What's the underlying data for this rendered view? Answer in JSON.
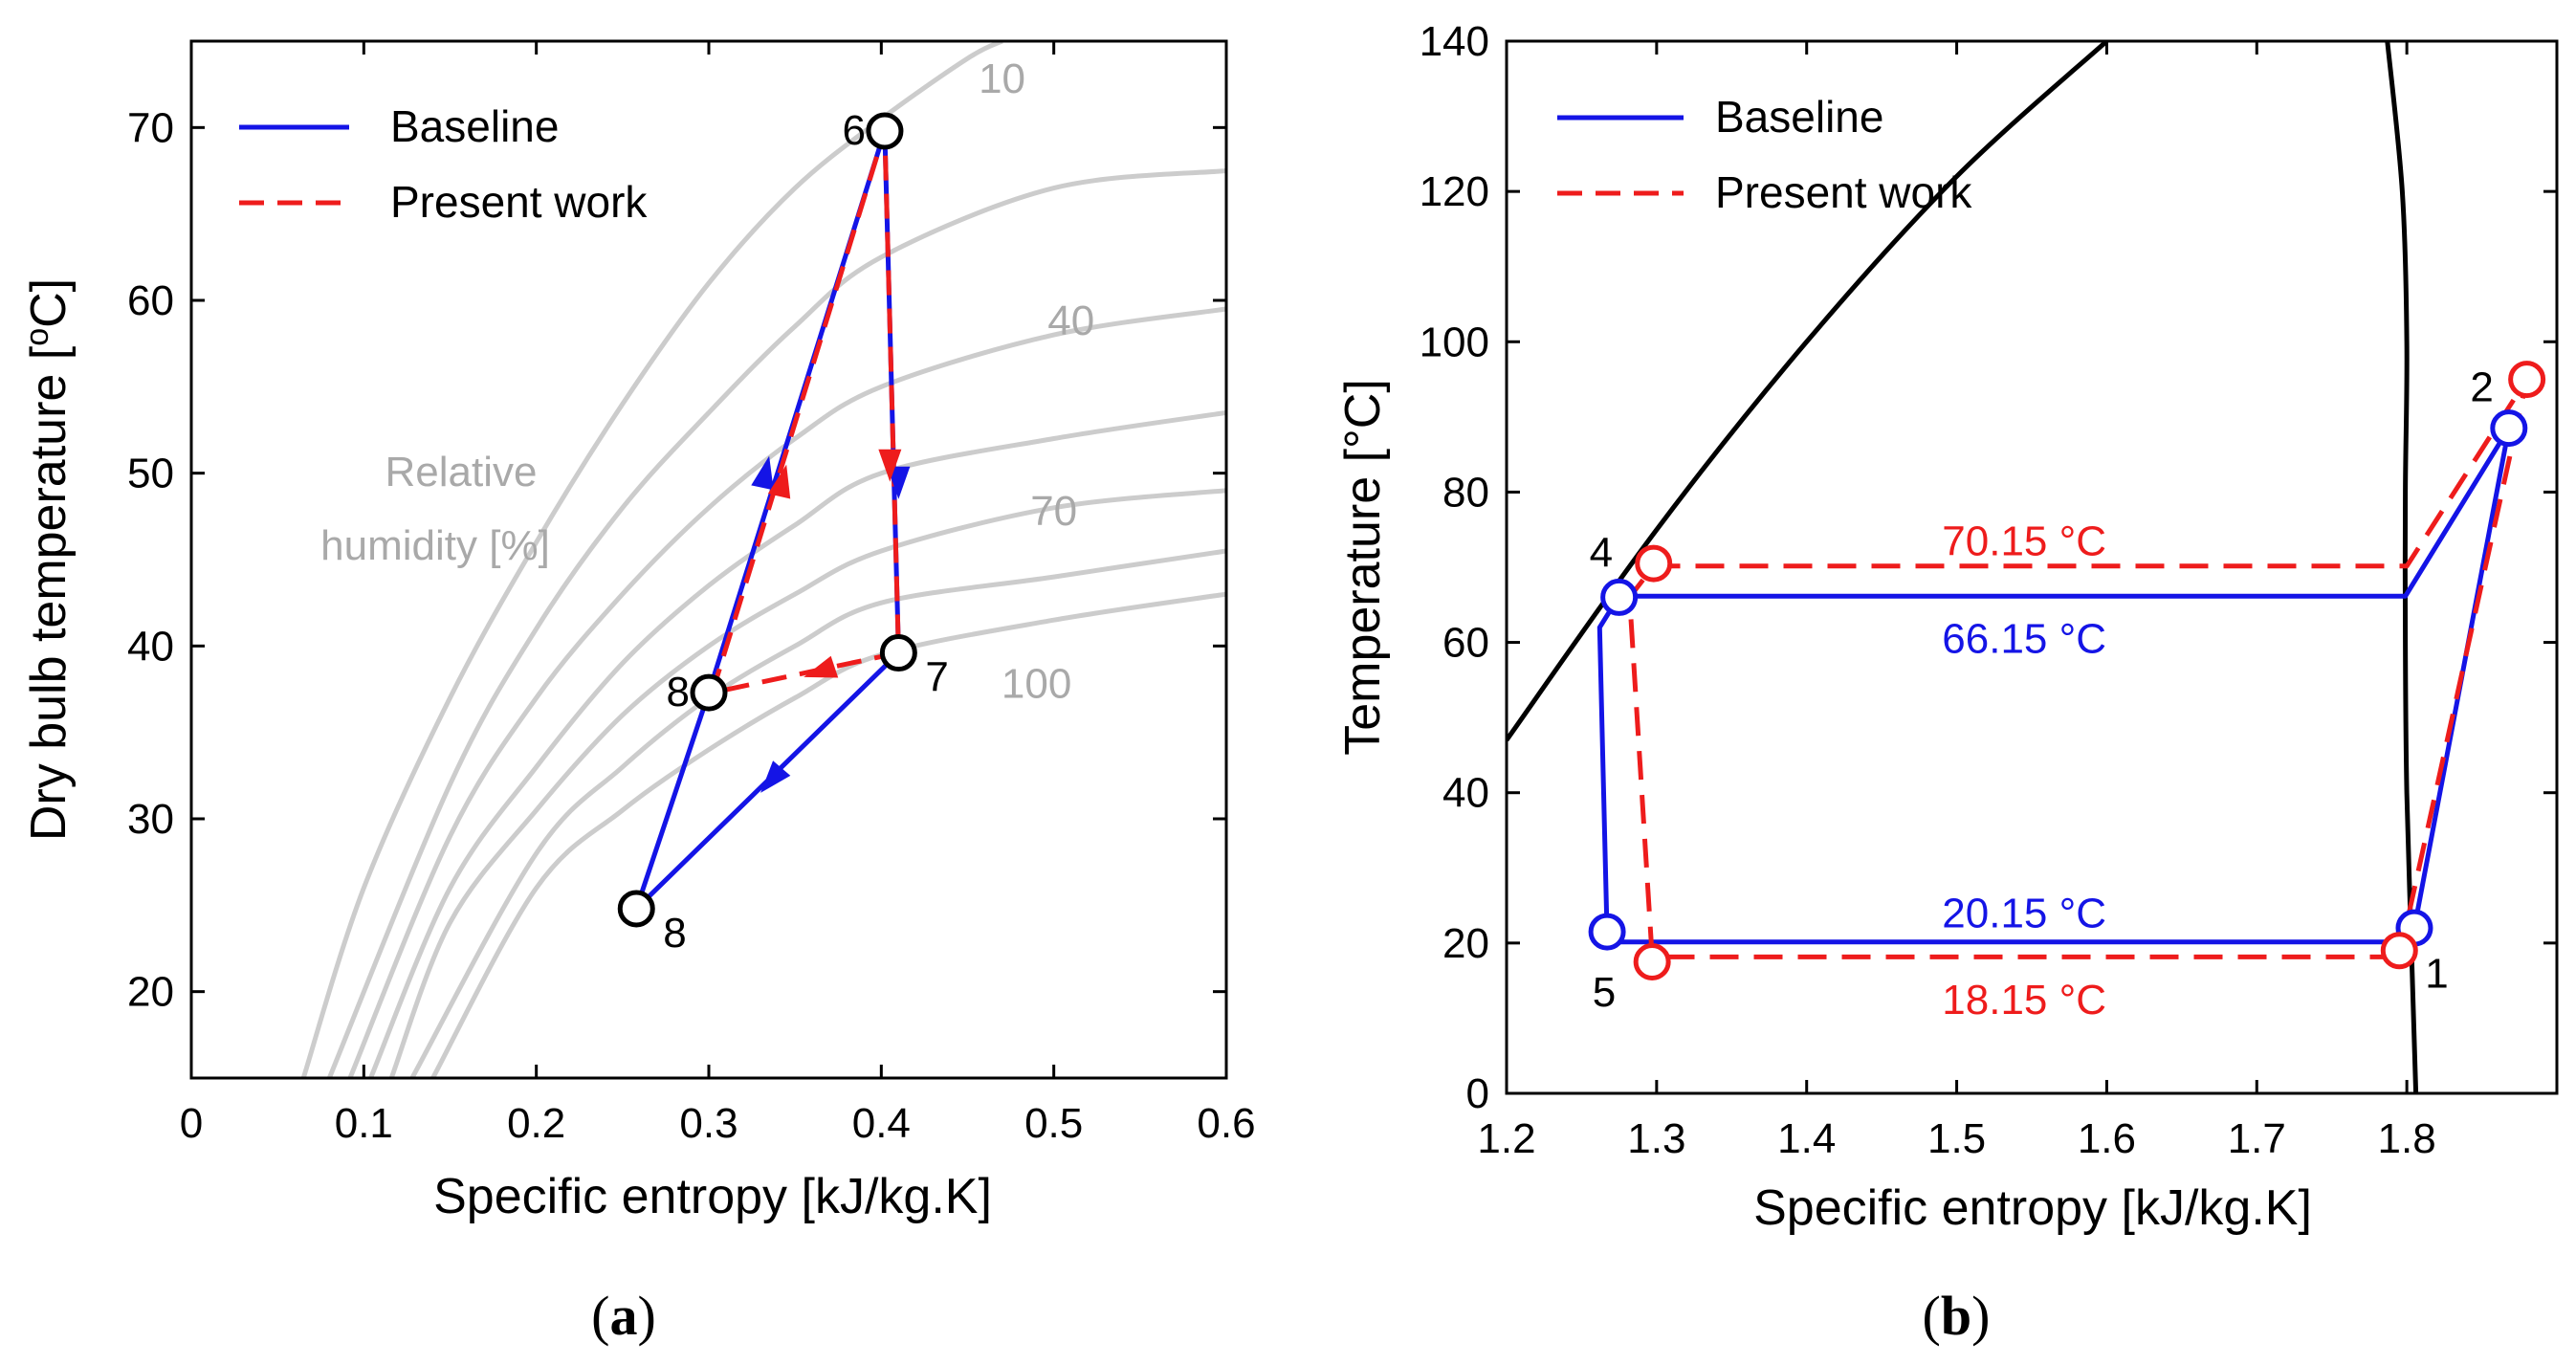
{
  "colors": {
    "baseline": "#1414e6",
    "present": "#ee1c1c",
    "rh": "#cccccc",
    "rh_text": "#a9a9a9",
    "sat": "#000000"
  },
  "chart_data": [
    {
      "id": "a",
      "type": "line",
      "caption": "a",
      "xlabel": "Specific entropy [kJ/kg.K]",
      "ylabel": {
        "main": "Dry bulb temperature [",
        "sup": "o",
        "tail": "C]"
      },
      "xlim": [
        0,
        0.6
      ],
      "ylim": [
        15,
        75
      ],
      "xticks": [
        0,
        0.1,
        0.2,
        0.3,
        0.4,
        0.5,
        0.6
      ],
      "xtick_labels": [
        "0",
        "0.1",
        "0.2",
        "0.3",
        "0.4",
        "0.5",
        "0.6"
      ],
      "yticks": [
        20,
        30,
        40,
        50,
        60,
        70
      ],
      "ytick_labels": [
        "20",
        "30",
        "40",
        "50",
        "60",
        "70"
      ],
      "legend": {
        "position": "top-left",
        "entries": [
          "Baseline",
          "Present work"
        ]
      },
      "rh_title": [
        "Relative",
        "humidity [%]"
      ],
      "rh_curves": [
        {
          "label": "10",
          "points": [
            [
              0.065,
              15
            ],
            [
              0.1,
              26
            ],
            [
              0.15,
              37
            ],
            [
              0.2,
              46
            ],
            [
              0.25,
              54
            ],
            [
              0.3,
              61
            ],
            [
              0.35,
              66.5
            ],
            [
              0.4,
              70.5
            ],
            [
              0.45,
              74
            ],
            [
              0.47,
              75
            ]
          ]
        },
        {
          "label": "",
          "points": [
            [
              0.08,
              15
            ],
            [
              0.15,
              32
            ],
            [
              0.2,
              41
            ],
            [
              0.25,
              48
            ],
            [
              0.3,
              53.5
            ],
            [
              0.35,
              58.5
            ],
            [
              0.4,
              62.5
            ],
            [
              0.5,
              66.5
            ],
            [
              0.6,
              67.5
            ]
          ]
        },
        {
          "label": "40",
          "points": [
            [
              0.092,
              15
            ],
            [
              0.15,
              29
            ],
            [
              0.2,
              37
            ],
            [
              0.25,
              43
            ],
            [
              0.3,
              48
            ],
            [
              0.35,
              52
            ],
            [
              0.4,
              55
            ],
            [
              0.5,
              58
            ],
            [
              0.6,
              59.5
            ]
          ]
        },
        {
          "label": "",
          "points": [
            [
              0.104,
              15
            ],
            [
              0.15,
              26
            ],
            [
              0.2,
              33
            ],
            [
              0.25,
              39
            ],
            [
              0.3,
              43.5
            ],
            [
              0.35,
              47
            ],
            [
              0.4,
              50
            ],
            [
              0.5,
              52
            ],
            [
              0.6,
              53.5
            ]
          ]
        },
        {
          "label": "70",
          "points": [
            [
              0.116,
              15
            ],
            [
              0.15,
              24
            ],
            [
              0.2,
              30.5
            ],
            [
              0.25,
              36
            ],
            [
              0.3,
              40
            ],
            [
              0.35,
              43
            ],
            [
              0.4,
              45.5
            ],
            [
              0.5,
              48
            ],
            [
              0.6,
              49
            ]
          ]
        },
        {
          "label": "",
          "points": [
            [
              0.128,
              15
            ],
            [
              0.2,
              28
            ],
            [
              0.25,
              33
            ],
            [
              0.3,
              37
            ],
            [
              0.35,
              40
            ],
            [
              0.4,
              42.5
            ],
            [
              0.5,
              44
            ],
            [
              0.6,
              45.5
            ]
          ]
        },
        {
          "label": "100",
          "points": [
            [
              0.14,
              15
            ],
            [
              0.2,
              26
            ],
            [
              0.25,
              30.5
            ],
            [
              0.3,
              34
            ],
            [
              0.35,
              37
            ],
            [
              0.4,
              39.5
            ],
            [
              0.5,
              41.5
            ],
            [
              0.6,
              43
            ]
          ]
        }
      ],
      "rh_label_positions": [
        {
          "label": "10",
          "x": 0.47,
          "y": 72
        },
        {
          "label": "40",
          "x": 0.51,
          "y": 58
        },
        {
          "label": "70",
          "x": 0.5,
          "y": 47
        },
        {
          "label": "100",
          "x": 0.49,
          "y": 37
        }
      ],
      "series": [
        {
          "name": "Baseline",
          "style": "solid",
          "points": [
            [
              0.258,
              24.8
            ],
            [
              0.3,
              37.3
            ],
            [
              0.402,
              69.8
            ],
            [
              0.41,
              39.6
            ],
            [
              0.258,
              24.8
            ]
          ]
        },
        {
          "name": "Present work",
          "style": "dashed",
          "points": [
            [
              0.302,
              37.3
            ],
            [
              0.402,
              69.8
            ],
            [
              0.41,
              39.6
            ],
            [
              0.302,
              37.3
            ]
          ]
        }
      ],
      "arrows": [
        {
          "series": "Baseline",
          "from": [
            0.32,
            44
          ],
          "to": [
            0.335,
            51
          ]
        },
        {
          "series": "Baseline",
          "from": [
            0.41,
            54
          ],
          "to": [
            0.41,
            48.5
          ]
        },
        {
          "series": "Baseline",
          "from": [
            0.36,
            35
          ],
          "to": [
            0.33,
            31.5
          ]
        },
        {
          "series": "Present work",
          "from": [
            0.33,
            44
          ],
          "to": [
            0.345,
            50.5
          ]
        },
        {
          "series": "Present work",
          "from": [
            0.405,
            55
          ],
          "to": [
            0.405,
            49.5
          ]
        },
        {
          "series": "Present work",
          "from": [
            0.385,
            39.2
          ],
          "to": [
            0.355,
            38.2
          ]
        }
      ],
      "state_points": [
        {
          "label": "6",
          "x": 0.402,
          "y": 69.8,
          "label_side": "left"
        },
        {
          "label": "7",
          "x": 0.41,
          "y": 39.6,
          "label_side": "right-below"
        },
        {
          "label": "8",
          "x": 0.3,
          "y": 37.3,
          "label_side": "left"
        },
        {
          "label": "8",
          "x": 0.258,
          "y": 24.8,
          "label_side": "right-below"
        }
      ]
    },
    {
      "id": "b",
      "type": "line",
      "caption": "b",
      "xlabel": "Specific entropy [kJ/kg.K]",
      "ylabel": "Temperature [°C]",
      "xlim": [
        1.2,
        1.9
      ],
      "ylim": [
        0,
        140
      ],
      "xticks": [
        1.2,
        1.3,
        1.4,
        1.5,
        1.6,
        1.7,
        1.8
      ],
      "xtick_labels": [
        "1.2",
        "1.3",
        "1.4",
        "1.5",
        "1.6",
        "1.7",
        "1.8"
      ],
      "yticks": [
        0,
        20,
        40,
        60,
        80,
        100,
        120,
        140
      ],
      "ytick_labels": [
        "0",
        "20",
        "40",
        "60",
        "80",
        "100",
        "120",
        "140"
      ],
      "legend": {
        "position": "top-left",
        "entries": [
          "Baseline",
          "Present work"
        ]
      },
      "saturation_liquid": [
        [
          1.2,
          47
        ],
        [
          1.3,
          75
        ],
        [
          1.4,
          100
        ],
        [
          1.5,
          122
        ],
        [
          1.6,
          140
        ]
      ],
      "saturation_vapor": [
        [
          1.806,
          0
        ],
        [
          1.803,
          20
        ],
        [
          1.8,
          40
        ],
        [
          1.799,
          60
        ],
        [
          1.799,
          80
        ],
        [
          1.8,
          100
        ],
        [
          1.797,
          120
        ],
        [
          1.787,
          140
        ]
      ],
      "series": [
        {
          "name": "Baseline",
          "style": "solid",
          "points": [
            [
              1.805,
              22
            ],
            [
              1.868,
              88.5
            ],
            [
              1.799,
              66.15
            ],
            [
              1.275,
              66.15
            ],
            [
              1.262,
              62
            ],
            [
              1.267,
              21
            ],
            [
              1.267,
              20.15
            ],
            [
              1.8,
              20.15
            ],
            [
              1.805,
              22
            ]
          ]
        },
        {
          "name": "Present work",
          "style": "dashed",
          "points": [
            [
              1.795,
              18.15
            ],
            [
              1.88,
              95
            ],
            [
              1.8,
              70.15
            ],
            [
              1.298,
              70.15
            ],
            [
              1.282,
              66
            ],
            [
              1.297,
              18.15
            ],
            [
              1.795,
              18.15
            ]
          ]
        }
      ],
      "state_points": [
        {
          "series": "Baseline",
          "label": "1",
          "x": 1.805,
          "y": 22
        },
        {
          "series": "Baseline",
          "label": "2",
          "x": 1.868,
          "y": 88.5
        },
        {
          "series": "Baseline",
          "label": "4",
          "x": 1.275,
          "y": 66
        },
        {
          "series": "Baseline",
          "label": "5",
          "x": 1.267,
          "y": 21.5
        },
        {
          "series": "Present work",
          "label": "",
          "x": 1.795,
          "y": 19
        },
        {
          "series": "Present work",
          "label": "",
          "x": 1.88,
          "y": 95
        },
        {
          "series": "Present work",
          "label": "",
          "x": 1.298,
          "y": 70.5
        },
        {
          "series": "Present work",
          "label": "",
          "x": 1.297,
          "y": 17.5
        }
      ],
      "point_labels": [
        {
          "label": "1",
          "x": 1.82,
          "y": 16
        },
        {
          "label": "2",
          "x": 1.85,
          "y": 94
        },
        {
          "label": "4",
          "x": 1.263,
          "y": 72
        },
        {
          "label": "5",
          "x": 1.265,
          "y": 13.5
        }
      ],
      "annotations": [
        {
          "text": "70.15 °C",
          "series": "Present work",
          "x": 1.545,
          "y": 73.5
        },
        {
          "text": "66.15 °C",
          "series": "Baseline",
          "x": 1.545,
          "y": 60.5
        },
        {
          "text": "20.15 °C",
          "series": "Baseline",
          "x": 1.545,
          "y": 24
        },
        {
          "text": "18.15 °C",
          "series": "Present work",
          "x": 1.545,
          "y": 12.5
        }
      ]
    }
  ]
}
